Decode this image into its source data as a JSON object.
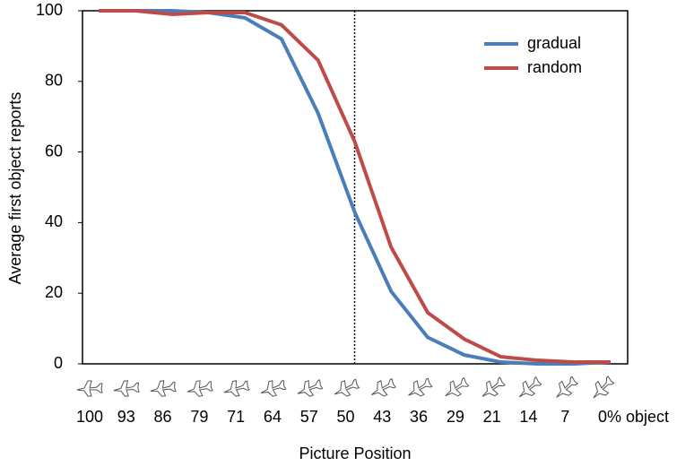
{
  "chart_data": {
    "type": "line",
    "x_label": "Picture Position",
    "y_label": "Average first object reports",
    "categories": [
      "100",
      "93",
      "86",
      "79",
      "71",
      "64",
      "57",
      "50",
      "43",
      "36",
      "29",
      "21",
      "14",
      "7",
      "0% object"
    ],
    "series": [
      {
        "name": "gradual",
        "color": "#4a7ebb",
        "values": [
          100,
          100,
          100,
          99.5,
          98,
          92,
          71,
          43,
          20.5,
          7.5,
          2.5,
          0.5,
          0,
          0,
          0.5
        ]
      },
      {
        "name": "random",
        "color": "#be4b48",
        "values": [
          100,
          100,
          99,
          99.5,
          99.5,
          96,
          86,
          63,
          33,
          14.5,
          7,
          2,
          1,
          0.5,
          0.5
        ]
      }
    ],
    "ylim": [
      0,
      100
    ],
    "yticks": [
      0,
      20,
      40,
      60,
      80,
      100
    ],
    "reference_line": "50",
    "legend": "upper right"
  }
}
